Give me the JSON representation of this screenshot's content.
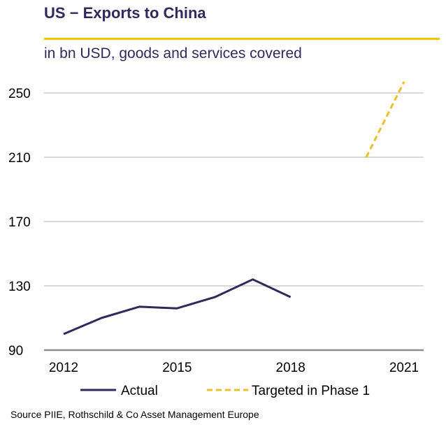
{
  "title": "US − Exports to China",
  "subtitle": "in bn USD, goods and services covered",
  "source": "Source PIIE, Rothschild & Co Asset Management Europe",
  "colors": {
    "title": "#2e2a5c",
    "accent": "#f2c500",
    "actual_line": "#2e2a5c",
    "target_line": "#e8c02a",
    "grid": "#b3b3b3",
    "axis": "#8c8c8c"
  },
  "chart_data": {
    "type": "line",
    "ylim": [
      90,
      250
    ],
    "xlim": [
      2012,
      2021
    ],
    "yticks": [
      90,
      130,
      170,
      210,
      250
    ],
    "xticks": [
      2012,
      2015,
      2018,
      2021
    ],
    "grid": true,
    "legend_position": "bottom",
    "series": [
      {
        "name": "Actual",
        "style": "solid",
        "x": [
          2012,
          2013,
          2014,
          2015,
          2016,
          2017,
          2018
        ],
        "values": [
          100,
          110,
          117,
          116,
          123,
          134,
          123
        ]
      },
      {
        "name": "Targeted in Phase 1",
        "style": "dashed",
        "x": [
          2020,
          2021
        ],
        "values": [
          210,
          257
        ]
      }
    ]
  }
}
